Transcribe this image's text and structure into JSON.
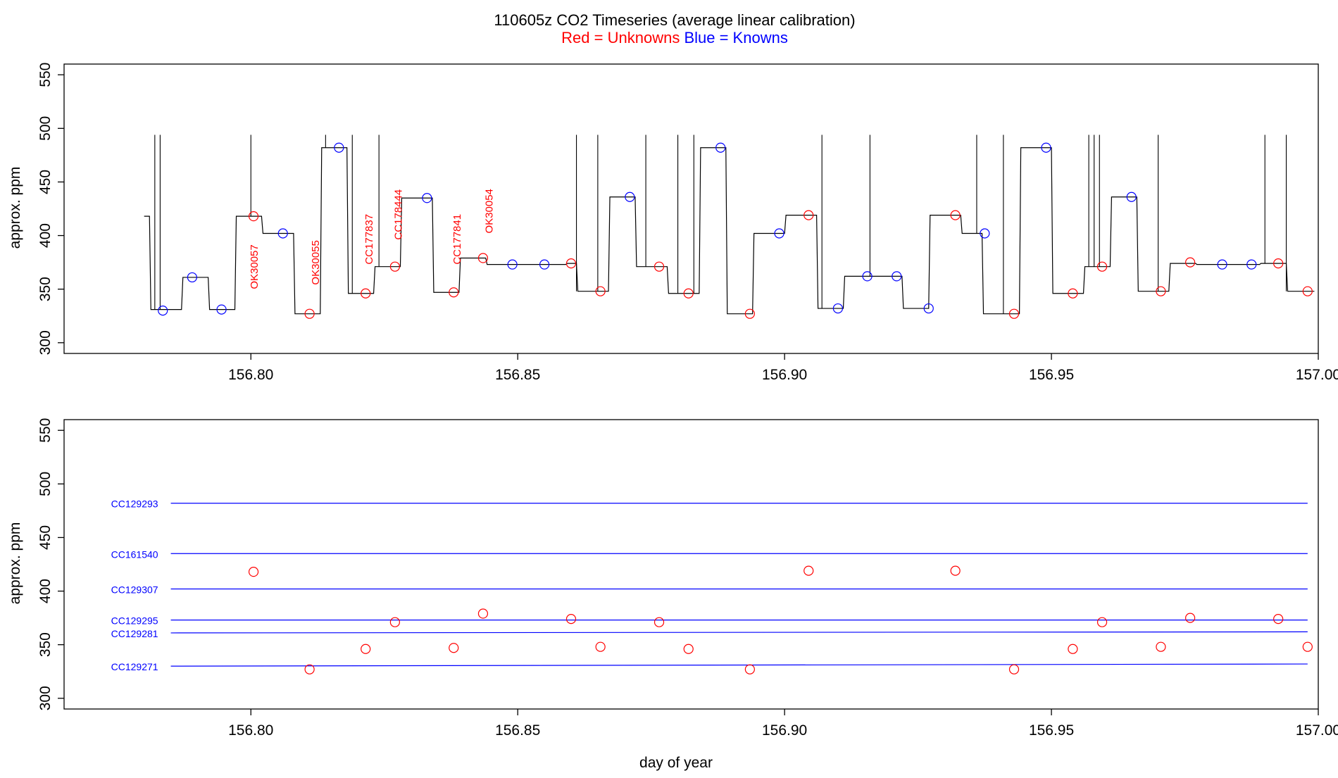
{
  "title": {
    "line1": "110605z   CO2 Timeseries (average linear calibration)",
    "red_text": "Red = Unknowns",
    "blue_text": " Blue = Knowns"
  },
  "colors": {
    "unknown": "#ff0000",
    "known": "#0000ff",
    "trace": "#000000",
    "axis": "#000000"
  },
  "chart_data": [
    {
      "type": "line",
      "panel": "top",
      "ylabel": "approx. ppm",
      "xlim": [
        156.765,
        157.0
      ],
      "ylim": [
        290,
        560
      ],
      "x_ticks": [
        156.8,
        156.85,
        156.9,
        156.95,
        157.0
      ],
      "x_tick_labels": [
        "156.80",
        "156.85",
        "156.90",
        "156.95",
        "157.00"
      ],
      "y_ticks": [
        300,
        350,
        400,
        450,
        500,
        550
      ],
      "y_tick_labels": [
        "300",
        "350",
        "400",
        "450",
        "500",
        "550"
      ],
      "trace": {
        "start_x": 156.78,
        "start_y": 418,
        "segments": [
          [
            156.781,
            331
          ],
          [
            156.787,
            361
          ],
          [
            156.792,
            331
          ],
          [
            156.797,
            418
          ],
          [
            156.802,
            402
          ],
          [
            156.808,
            327
          ],
          [
            156.813,
            482
          ],
          [
            156.818,
            346
          ],
          [
            156.823,
            371
          ],
          [
            156.828,
            435
          ],
          [
            156.834,
            347
          ],
          [
            156.839,
            379
          ],
          [
            156.844,
            373
          ],
          [
            156.851,
            373
          ],
          [
            156.859,
            374
          ],
          [
            156.861,
            348
          ],
          [
            156.867,
            436
          ],
          [
            156.872,
            371
          ],
          [
            156.878,
            346
          ],
          [
            156.884,
            482
          ],
          [
            156.889,
            327
          ],
          [
            156.894,
            402
          ],
          [
            156.9,
            419
          ],
          [
            156.906,
            332
          ],
          [
            156.911,
            362
          ],
          [
            156.918,
            362
          ],
          [
            156.922,
            332
          ],
          [
            156.927,
            419
          ],
          [
            156.933,
            402
          ],
          [
            156.937,
            327
          ],
          [
            156.944,
            482
          ],
          [
            156.95,
            346
          ],
          [
            156.956,
            371
          ],
          [
            156.961,
            436
          ],
          [
            156.966,
            348
          ],
          [
            156.972,
            374
          ],
          [
            156.977,
            373
          ],
          [
            156.985,
            373
          ],
          [
            156.989,
            374
          ],
          [
            156.994,
            348
          ],
          [
            156.999,
            348
          ]
        ],
        "spikes": [
          156.782,
          156.783,
          156.8,
          156.814,
          156.819,
          156.824,
          156.861,
          156.865,
          156.874,
          156.88,
          156.883,
          156.907,
          156.916,
          156.936,
          156.941,
          156.957,
          156.958,
          156.959,
          156.97,
          156.99,
          156.994
        ],
        "spike_top": 494
      },
      "known_points": [
        {
          "x": 156.7835,
          "y": 330
        },
        {
          "x": 156.789,
          "y": 361
        },
        {
          "x": 156.7945,
          "y": 331
        },
        {
          "x": 156.806,
          "y": 402
        },
        {
          "x": 156.8165,
          "y": 482
        },
        {
          "x": 156.833,
          "y": 435
        },
        {
          "x": 156.849,
          "y": 373
        },
        {
          "x": 156.855,
          "y": 373
        },
        {
          "x": 156.871,
          "y": 436
        },
        {
          "x": 156.888,
          "y": 482
        },
        {
          "x": 156.899,
          "y": 402
        },
        {
          "x": 156.91,
          "y": 332
        },
        {
          "x": 156.9155,
          "y": 362
        },
        {
          "x": 156.921,
          "y": 362
        },
        {
          "x": 156.927,
          "y": 332
        },
        {
          "x": 156.9375,
          "y": 402
        },
        {
          "x": 156.949,
          "y": 482
        },
        {
          "x": 156.965,
          "y": 436
        },
        {
          "x": 156.982,
          "y": 373
        },
        {
          "x": 156.9875,
          "y": 373
        }
      ],
      "unknown_points": [
        {
          "x": 156.8005,
          "y": 418
        },
        {
          "x": 156.811,
          "y": 327
        },
        {
          "x": 156.8215,
          "y": 346
        },
        {
          "x": 156.827,
          "y": 371
        },
        {
          "x": 156.838,
          "y": 347
        },
        {
          "x": 156.8435,
          "y": 379
        },
        {
          "x": 156.86,
          "y": 374
        },
        {
          "x": 156.8655,
          "y": 348
        },
        {
          "x": 156.8765,
          "y": 371
        },
        {
          "x": 156.882,
          "y": 346
        },
        {
          "x": 156.8935,
          "y": 327
        },
        {
          "x": 156.9045,
          "y": 419
        },
        {
          "x": 156.932,
          "y": 419
        },
        {
          "x": 156.943,
          "y": 327
        },
        {
          "x": 156.954,
          "y": 346
        },
        {
          "x": 156.9595,
          "y": 371
        },
        {
          "x": 156.9705,
          "y": 348
        },
        {
          "x": 156.976,
          "y": 375
        },
        {
          "x": 156.9925,
          "y": 374
        },
        {
          "x": 156.998,
          "y": 348
        }
      ],
      "annotations": [
        {
          "text": "OK30057",
          "x": 156.8005,
          "y": 350
        },
        {
          "text": "OK30055",
          "x": 156.812,
          "y": 354
        },
        {
          "text": "CC177837",
          "x": 156.822,
          "y": 373
        },
        {
          "text": "CC178444",
          "x": 156.8275,
          "y": 396
        },
        {
          "text": "CC177841",
          "x": 156.8385,
          "y": 373
        },
        {
          "text": "OK30054",
          "x": 156.8445,
          "y": 402
        }
      ]
    },
    {
      "type": "scatter",
      "panel": "bottom",
      "xlabel": "day of year",
      "ylabel": "approx. ppm",
      "xlim": [
        156.765,
        157.0
      ],
      "ylim": [
        290,
        560
      ],
      "x_ticks": [
        156.8,
        156.85,
        156.9,
        156.95,
        157.0
      ],
      "x_tick_labels": [
        "156.80",
        "156.85",
        "156.90",
        "156.95",
        "157.00"
      ],
      "y_ticks": [
        300,
        350,
        400,
        450,
        500,
        550
      ],
      "y_tick_labels": [
        "300",
        "350",
        "400",
        "450",
        "500",
        "550"
      ],
      "reference_lines": [
        {
          "name": "CC129293",
          "x": [
            156.785,
            156.998
          ],
          "y": [
            482,
            482
          ]
        },
        {
          "name": "CC161540",
          "x": [
            156.785,
            156.998
          ],
          "y": [
            435,
            435
          ]
        },
        {
          "name": "CC129307",
          "x": [
            156.785,
            156.998
          ],
          "y": [
            402,
            402
          ]
        },
        {
          "name": "CC129295",
          "x": [
            156.785,
            156.998
          ],
          "y": [
            373,
            373
          ]
        },
        {
          "name": "CC129281",
          "x": [
            156.785,
            156.998
          ],
          "y": [
            361,
            362
          ]
        },
        {
          "name": "CC129271",
          "x": [
            156.785,
            156.998
          ],
          "y": [
            330,
            332
          ]
        }
      ],
      "points": [
        {
          "x": 156.8005,
          "y": 418
        },
        {
          "x": 156.811,
          "y": 327
        },
        {
          "x": 156.8215,
          "y": 346
        },
        {
          "x": 156.827,
          "y": 371
        },
        {
          "x": 156.838,
          "y": 347
        },
        {
          "x": 156.8435,
          "y": 379
        },
        {
          "x": 156.86,
          "y": 374
        },
        {
          "x": 156.8655,
          "y": 348
        },
        {
          "x": 156.8765,
          "y": 371
        },
        {
          "x": 156.882,
          "y": 346
        },
        {
          "x": 156.8935,
          "y": 327
        },
        {
          "x": 156.9045,
          "y": 419
        },
        {
          "x": 156.932,
          "y": 419
        },
        {
          "x": 156.943,
          "y": 327
        },
        {
          "x": 156.954,
          "y": 346
        },
        {
          "x": 156.9595,
          "y": 371
        },
        {
          "x": 156.9705,
          "y": 348
        },
        {
          "x": 156.976,
          "y": 375
        },
        {
          "x": 156.9925,
          "y": 374
        },
        {
          "x": 156.998,
          "y": 348
        }
      ]
    }
  ]
}
